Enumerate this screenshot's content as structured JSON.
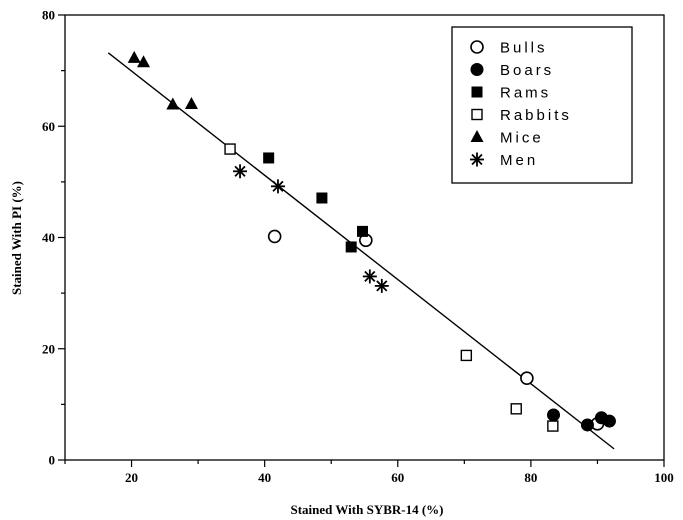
{
  "chart_data": {
    "type": "scatter",
    "title": "",
    "xlabel": "Stained With SYBR-14 (%)",
    "ylabel": "Stained With PI (%)",
    "xlim": [
      10,
      100
    ],
    "ylim": [
      0,
      80
    ],
    "xticks": [
      20,
      40,
      60,
      80,
      100
    ],
    "yticks": [
      0,
      20,
      40,
      60,
      80
    ],
    "grid": false,
    "legend_position": "top-right",
    "series": [
      {
        "name": "Bulls",
        "marker": "open-circle",
        "points": [
          [
            41.5,
            40.2
          ],
          [
            55.2,
            39.5
          ],
          [
            79.4,
            14.7
          ],
          [
            90.0,
            6.5
          ]
        ]
      },
      {
        "name": "Boars",
        "marker": "filled-circle",
        "points": [
          [
            83.4,
            8.1
          ],
          [
            88.5,
            6.3
          ],
          [
            90.6,
            7.6
          ],
          [
            91.8,
            7.0
          ]
        ]
      },
      {
        "name": "Rams",
        "marker": "filled-square",
        "points": [
          [
            40.6,
            54.3
          ],
          [
            48.6,
            47.1
          ],
          [
            53.0,
            38.3
          ],
          [
            54.7,
            41.1
          ]
        ]
      },
      {
        "name": "Rabbits",
        "marker": "open-square",
        "points": [
          [
            34.8,
            55.9
          ],
          [
            70.3,
            18.8
          ],
          [
            77.8,
            9.2
          ],
          [
            83.3,
            6.1
          ]
        ]
      },
      {
        "name": "Mice",
        "marker": "filled-triangle",
        "points": [
          [
            20.4,
            72.3
          ],
          [
            21.8,
            71.5
          ],
          [
            26.2,
            63.9
          ],
          [
            29.0,
            64.0
          ]
        ]
      },
      {
        "name": "Men",
        "marker": "asterisk",
        "points": [
          [
            36.3,
            51.9
          ],
          [
            42.0,
            49.2
          ],
          [
            55.8,
            33.0
          ],
          [
            57.6,
            31.3
          ]
        ]
      }
    ],
    "regression_line": {
      "x": [
        16.5,
        92.5
      ],
      "y": [
        73.2,
        2.0
      ]
    }
  }
}
